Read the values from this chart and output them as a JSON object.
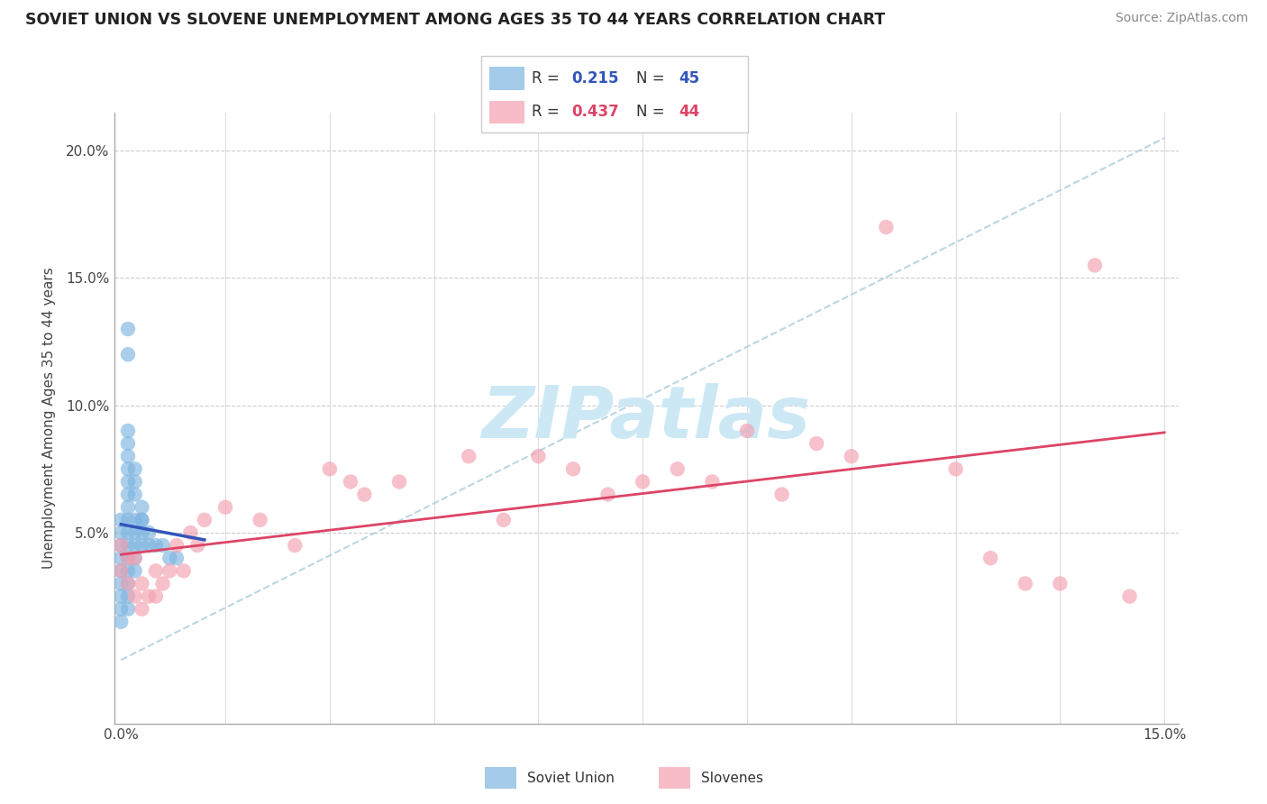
{
  "title": "SOVIET UNION VS SLOVENE UNEMPLOYMENT AMONG AGES 35 TO 44 YEARS CORRELATION CHART",
  "source_text": "Source: ZipAtlas.com",
  "ylabel": "Unemployment Among Ages 35 to 44 years",
  "xlim": [
    -0.001,
    0.152
  ],
  "ylim": [
    -0.025,
    0.215
  ],
  "y_ticks": [
    0.0,
    0.05,
    0.1,
    0.15,
    0.2
  ],
  "y_tick_labels": [
    "",
    "5.0%",
    "10.0%",
    "15.0%",
    "20.0%"
  ],
  "x_ticks": [
    0.0,
    0.015,
    0.03,
    0.045,
    0.06,
    0.075,
    0.09,
    0.105,
    0.12,
    0.135,
    0.15
  ],
  "x_tick_labels": [
    "0.0%",
    "",
    "",
    "",
    "",
    "",
    "",
    "",
    "",
    "",
    "15.0%"
  ],
  "grid_color": "#cccccc",
  "background_color": "#ffffff",
  "watermark_text": "ZIPatlas",
  "watermark_color": "#cde8f5",
  "soviet_R": 0.215,
  "soviet_N": 45,
  "slovene_R": 0.437,
  "slovene_N": 44,
  "soviet_color": "#7EB5E0",
  "slovene_color": "#F4A0B0",
  "soviet_line_color": "#3355BB",
  "slovene_line_color": "#DD4466",
  "ref_line_color": "#aaccdd",
  "soviet_x": [
    0.0,
    0.0,
    0.0,
    0.0,
    0.0,
    0.0,
    0.001,
    0.001,
    0.001,
    0.001,
    0.001,
    0.001,
    0.001,
    0.001,
    0.001,
    0.001,
    0.002,
    0.002,
    0.002,
    0.002,
    0.002,
    0.003,
    0.003,
    0.003,
    0.004,
    0.004,
    0.005,
    0.006,
    0.007,
    0.008,
    0.001,
    0.001,
    0.001,
    0.002,
    0.002,
    0.0,
    0.0,
    0.0,
    0.001,
    0.001,
    0.002,
    0.003,
    0.003,
    0.001,
    0.001
  ],
  "soviet_y": [
    0.04,
    0.035,
    0.03,
    0.025,
    0.02,
    0.015,
    0.065,
    0.06,
    0.055,
    0.05,
    0.045,
    0.04,
    0.035,
    0.03,
    0.025,
    0.02,
    0.055,
    0.05,
    0.045,
    0.04,
    0.035,
    0.055,
    0.05,
    0.045,
    0.05,
    0.045,
    0.045,
    0.045,
    0.04,
    0.04,
    0.08,
    0.075,
    0.07,
    0.07,
    0.065,
    0.055,
    0.05,
    0.045,
    0.085,
    0.09,
    0.075,
    0.06,
    0.055,
    0.12,
    0.13
  ],
  "slovene_x": [
    0.0,
    0.0,
    0.001,
    0.001,
    0.002,
    0.002,
    0.003,
    0.003,
    0.004,
    0.005,
    0.005,
    0.006,
    0.007,
    0.008,
    0.009,
    0.01,
    0.011,
    0.012,
    0.015,
    0.02,
    0.025,
    0.03,
    0.033,
    0.035,
    0.04,
    0.05,
    0.055,
    0.06,
    0.065,
    0.07,
    0.075,
    0.08,
    0.085,
    0.09,
    0.095,
    0.1,
    0.105,
    0.11,
    0.12,
    0.125,
    0.13,
    0.135,
    0.14,
    0.145
  ],
  "slovene_y": [
    0.045,
    0.035,
    0.04,
    0.03,
    0.04,
    0.025,
    0.03,
    0.02,
    0.025,
    0.035,
    0.025,
    0.03,
    0.035,
    0.045,
    0.035,
    0.05,
    0.045,
    0.055,
    0.06,
    0.055,
    0.045,
    0.075,
    0.07,
    0.065,
    0.07,
    0.08,
    0.055,
    0.08,
    0.075,
    0.065,
    0.07,
    0.075,
    0.07,
    0.09,
    0.065,
    0.085,
    0.08,
    0.17,
    0.075,
    0.04,
    0.03,
    0.03,
    0.155,
    0.025
  ]
}
